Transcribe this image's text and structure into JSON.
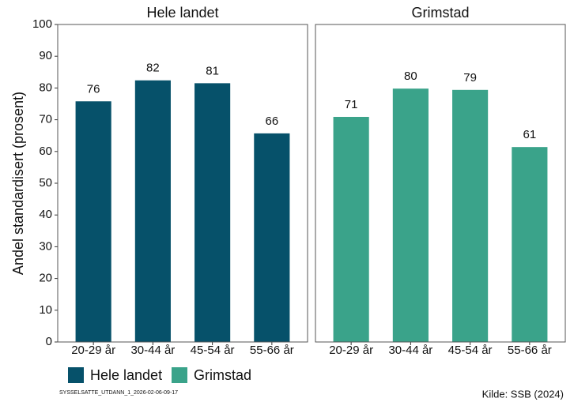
{
  "y_label": "Andel standardisert (prosent)",
  "caption": "Kilde: SSB (2024)",
  "footer": "SYSSELSATTE_UTDANN_1_2026-02-06-09-17",
  "chart_data": [
    {
      "type": "bar",
      "title": "Hele landet",
      "categories": [
        "20-29 år",
        "30-44 år",
        "45-54 år",
        "55-66 år"
      ],
      "series": [
        {
          "name": "Hele landet",
          "color": "#06516a",
          "values": [
            75.8,
            82.4,
            81.5,
            65.7
          ],
          "value_labels": [
            "76",
            "82",
            "81",
            "66"
          ]
        }
      ],
      "ylim": [
        0,
        100
      ],
      "yticks": [
        0,
        10,
        20,
        30,
        40,
        50,
        60,
        70,
        80,
        90,
        100
      ]
    },
    {
      "type": "bar",
      "title": "Grimstad",
      "categories": [
        "20-29 år",
        "30-44 år",
        "45-54 år",
        "55-66 år"
      ],
      "series": [
        {
          "name": "Grimstad",
          "color": "#3aa38a",
          "values": [
            70.9,
            79.8,
            79.4,
            61.4
          ],
          "value_labels": [
            "71",
            "80",
            "79",
            "61"
          ]
        }
      ],
      "ylim": [
        0,
        100
      ]
    }
  ]
}
